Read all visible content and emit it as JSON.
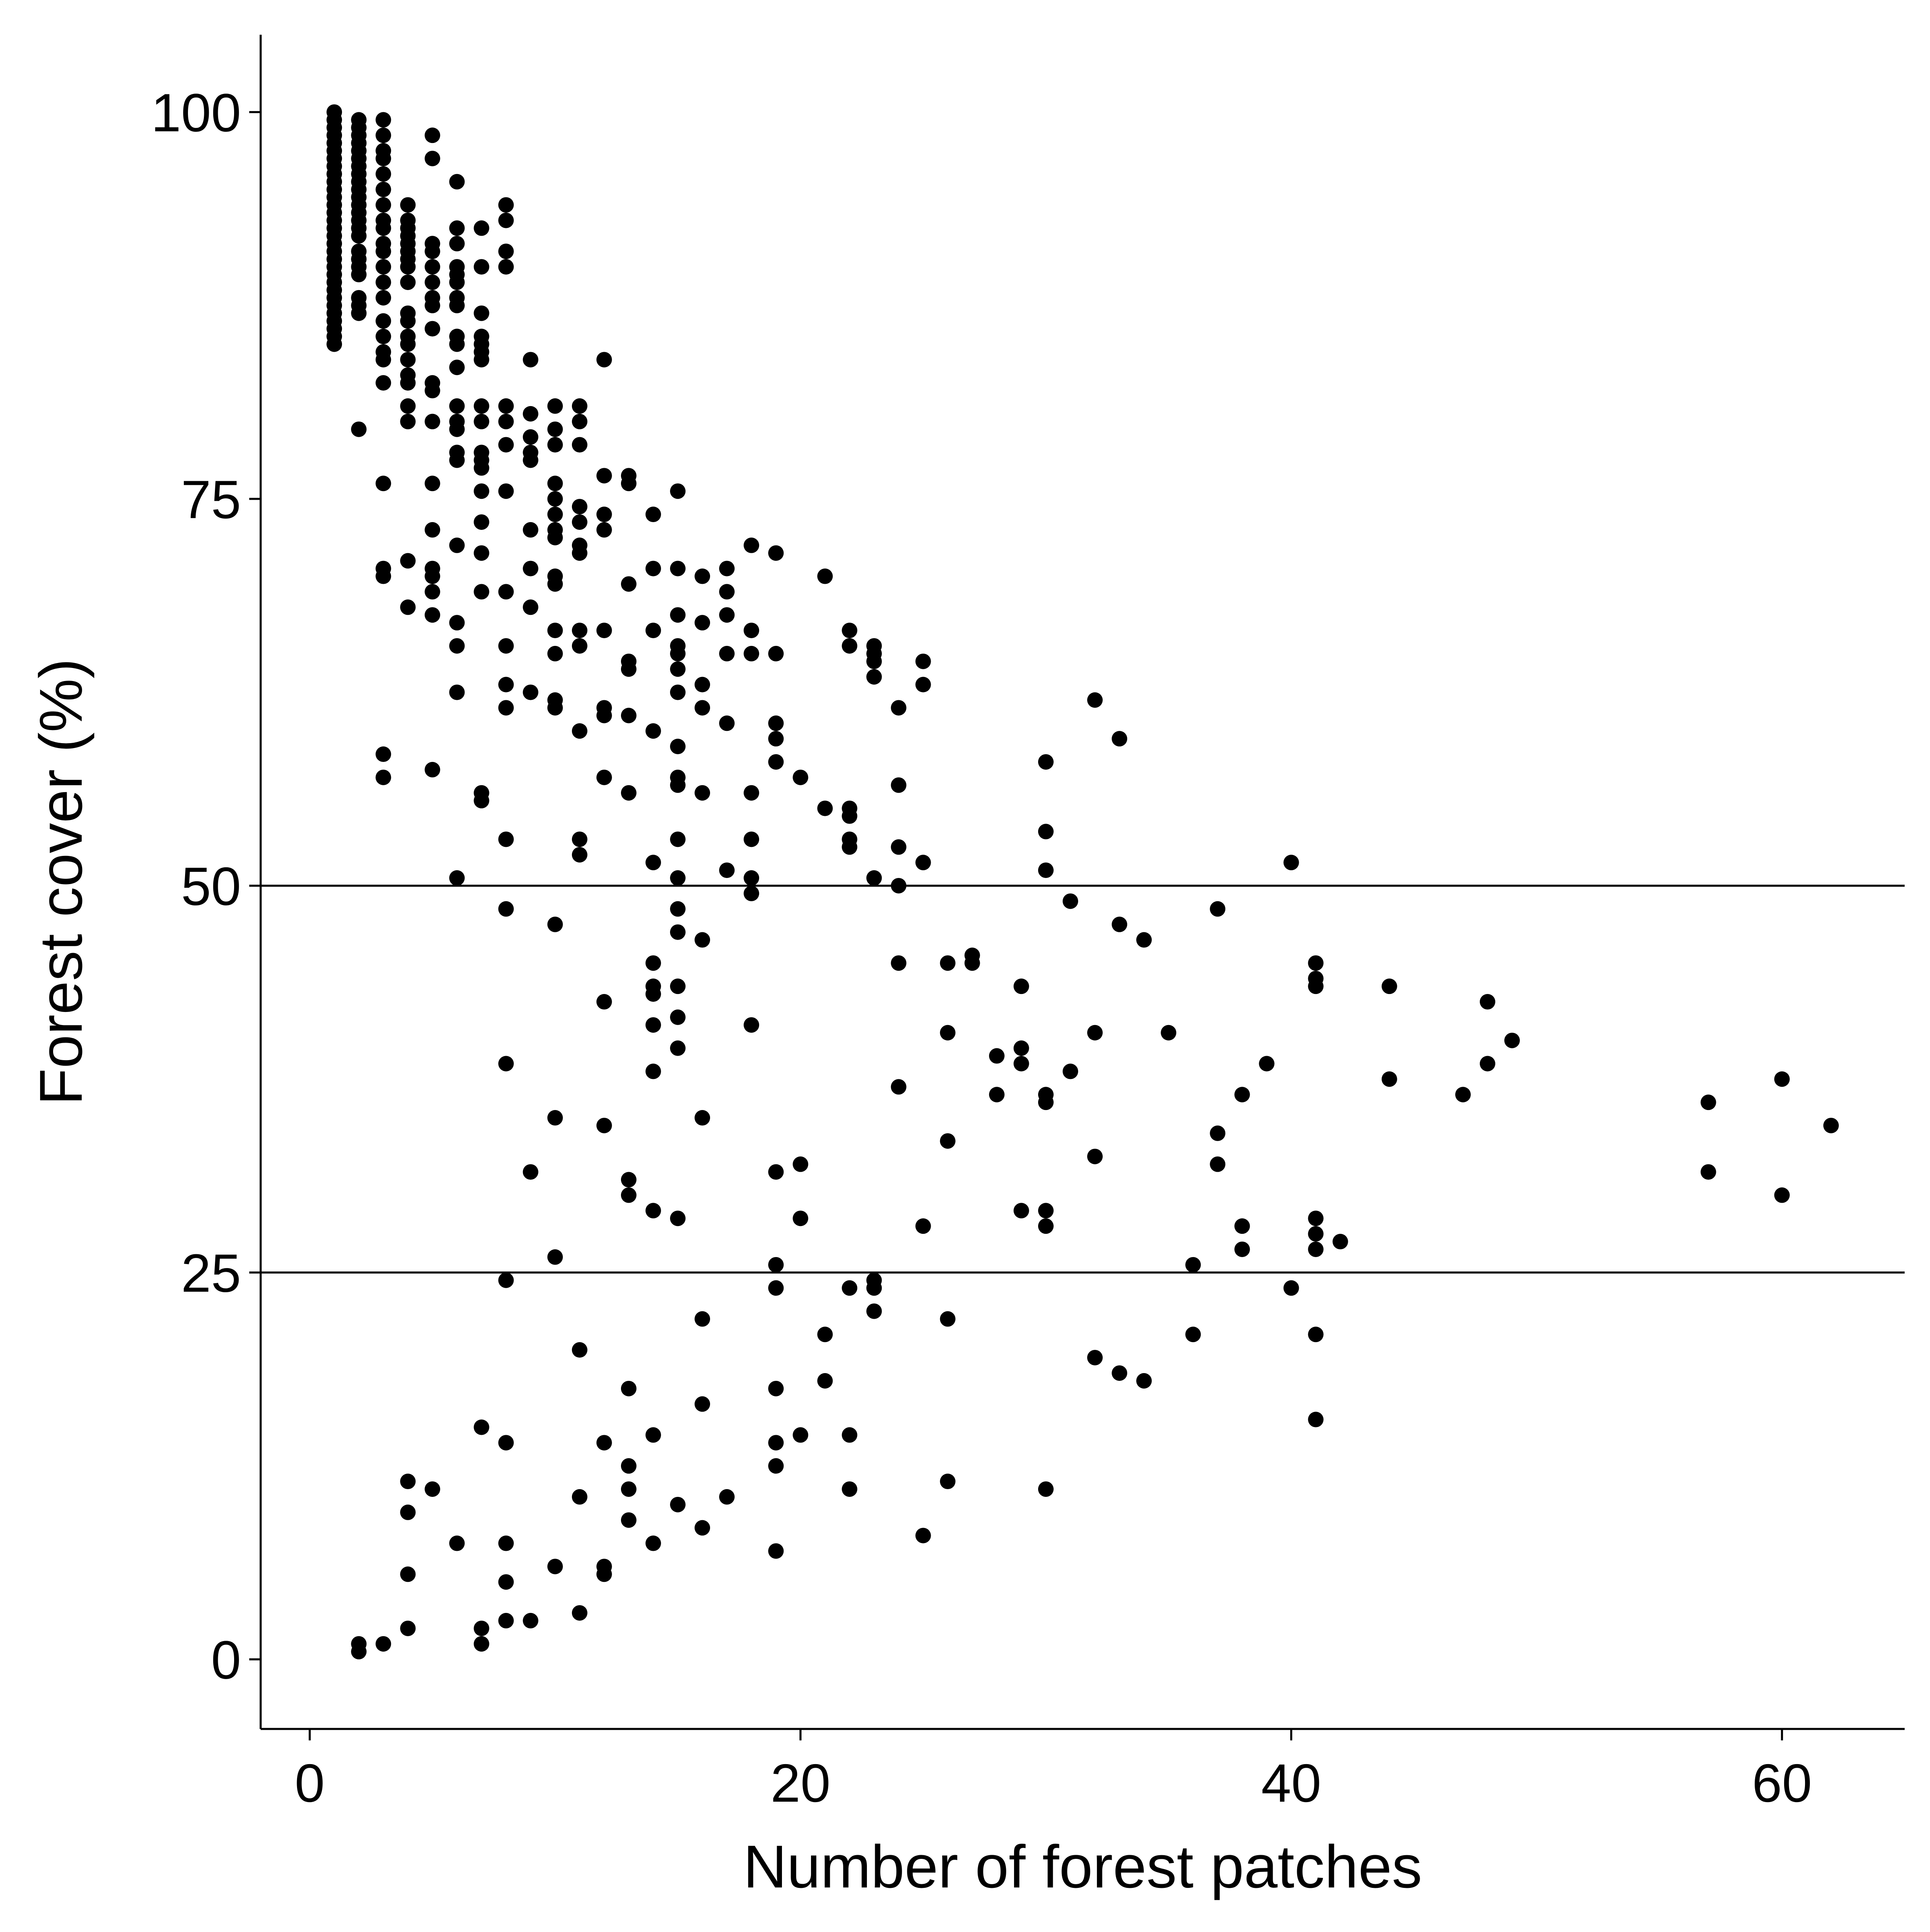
{
  "chart_data": {
    "type": "scatter",
    "title": "",
    "xlabel": "Number of forest patches",
    "ylabel": "Forest cover (%)",
    "xlim": [
      -2,
      65
    ],
    "ylim": [
      -4.5,
      105
    ],
    "x_ticks": [
      0,
      20,
      40,
      60
    ],
    "y_ticks": [
      0,
      25,
      50,
      75,
      100
    ],
    "x_tick_labels": [
      "0",
      "20",
      "40",
      "60"
    ],
    "y_tick_labels": [
      "0",
      "25",
      "50",
      "75",
      "100"
    ],
    "reference_lines_y": [
      25,
      50
    ],
    "grid": false,
    "legend": "none",
    "point_color": "#000000",
    "points": [
      [
        1,
        100
      ],
      [
        1,
        99.5
      ],
      [
        1,
        99
      ],
      [
        1,
        98.5
      ],
      [
        1,
        98
      ],
      [
        1,
        97.5
      ],
      [
        1,
        97
      ],
      [
        1,
        96.5
      ],
      [
        1,
        96
      ],
      [
        1,
        95.5
      ],
      [
        1,
        95
      ],
      [
        1,
        94.5
      ],
      [
        1,
        94
      ],
      [
        1,
        93.5
      ],
      [
        1,
        93
      ],
      [
        1,
        92.5
      ],
      [
        1,
        92
      ],
      [
        1,
        91.5
      ],
      [
        1,
        91
      ],
      [
        1,
        90.5
      ],
      [
        1,
        90
      ],
      [
        1,
        89.5
      ],
      [
        1,
        89
      ],
      [
        1,
        88.5
      ],
      [
        1,
        88
      ],
      [
        1,
        87.5
      ],
      [
        1,
        87
      ],
      [
        1,
        86.5
      ],
      [
        1,
        86
      ],
      [
        1,
        85.5
      ],
      [
        1,
        85
      ],
      [
        2,
        99.5
      ],
      [
        2,
        99
      ],
      [
        2,
        98.5
      ],
      [
        2,
        98
      ],
      [
        2,
        97.5
      ],
      [
        2,
        97
      ],
      [
        2,
        96.5
      ],
      [
        2,
        96
      ],
      [
        2,
        95.5
      ],
      [
        2,
        95
      ],
      [
        2,
        94.5
      ],
      [
        2,
        94
      ],
      [
        2,
        93.5
      ],
      [
        2,
        93
      ],
      [
        2,
        92.5
      ],
      [
        2,
        92
      ],
      [
        2,
        91
      ],
      [
        2,
        90.5
      ],
      [
        2,
        90
      ],
      [
        2,
        89.5
      ],
      [
        2,
        88
      ],
      [
        2,
        87.5
      ],
      [
        2,
        87
      ],
      [
        2,
        79.5
      ],
      [
        2,
        1
      ],
      [
        2,
        0.5
      ],
      [
        3,
        99.5
      ],
      [
        3,
        98.5
      ],
      [
        3,
        97.5
      ],
      [
        3,
        97
      ],
      [
        3,
        96
      ],
      [
        3,
        95
      ],
      [
        3,
        94
      ],
      [
        3,
        93
      ],
      [
        3,
        92.5
      ],
      [
        3,
        91.5
      ],
      [
        3,
        91
      ],
      [
        3,
        90
      ],
      [
        3,
        89
      ],
      [
        3,
        88
      ],
      [
        3,
        86.5
      ],
      [
        3,
        85.5
      ],
      [
        3,
        84.5
      ],
      [
        3,
        84
      ],
      [
        3,
        82.5
      ],
      [
        3,
        76
      ],
      [
        3,
        70.5
      ],
      [
        3,
        70
      ],
      [
        3,
        58.5
      ],
      [
        3,
        57
      ],
      [
        3,
        1
      ],
      [
        4,
        94
      ],
      [
        4,
        93
      ],
      [
        4,
        92.5
      ],
      [
        4,
        92
      ],
      [
        4,
        91.5
      ],
      [
        4,
        91
      ],
      [
        4,
        90.5
      ],
      [
        4,
        90
      ],
      [
        4,
        89
      ],
      [
        4,
        87
      ],
      [
        4,
        86.5
      ],
      [
        4,
        85.5
      ],
      [
        4,
        85
      ],
      [
        4,
        84
      ],
      [
        4,
        83
      ],
      [
        4,
        82.5
      ],
      [
        4,
        81
      ],
      [
        4,
        80
      ],
      [
        4,
        71
      ],
      [
        4,
        68
      ],
      [
        4,
        11.5
      ],
      [
        4,
        9.5
      ],
      [
        4,
        5.5
      ],
      [
        4,
        2
      ],
      [
        5,
        98.5
      ],
      [
        5,
        97
      ],
      [
        5,
        91.5
      ],
      [
        5,
        91
      ],
      [
        5,
        90
      ],
      [
        5,
        89
      ],
      [
        5,
        88
      ],
      [
        5,
        87.5
      ],
      [
        5,
        86
      ],
      [
        5,
        82.5
      ],
      [
        5,
        82
      ],
      [
        5,
        80
      ],
      [
        5,
        76
      ],
      [
        5,
        73
      ],
      [
        5,
        70.5
      ],
      [
        5,
        70
      ],
      [
        5,
        69
      ],
      [
        5,
        67.5
      ],
      [
        5,
        57.5
      ],
      [
        5,
        11
      ],
      [
        6,
        95.5
      ],
      [
        6,
        92.5
      ],
      [
        6,
        91.5
      ],
      [
        6,
        90
      ],
      [
        6,
        89.5
      ],
      [
        6,
        89
      ],
      [
        6,
        88
      ],
      [
        6,
        87.5
      ],
      [
        6,
        85.5
      ],
      [
        6,
        85
      ],
      [
        6,
        83.5
      ],
      [
        6,
        81
      ],
      [
        6,
        80
      ],
      [
        6,
        79.5
      ],
      [
        6,
        78
      ],
      [
        6,
        77.5
      ],
      [
        6,
        72
      ],
      [
        6,
        67
      ],
      [
        6,
        65.5
      ],
      [
        6,
        62.5
      ],
      [
        6,
        50.5
      ],
      [
        6,
        7.5
      ],
      [
        7,
        92.5
      ],
      [
        7,
        90
      ],
      [
        7,
        87
      ],
      [
        7,
        85.5
      ],
      [
        7,
        85
      ],
      [
        7,
        84.5
      ],
      [
        7,
        84
      ],
      [
        7,
        81
      ],
      [
        7,
        80
      ],
      [
        7,
        78
      ],
      [
        7,
        77.5
      ],
      [
        7,
        77
      ],
      [
        7,
        75.5
      ],
      [
        7,
        73.5
      ],
      [
        7,
        71.5
      ],
      [
        7,
        69
      ],
      [
        7,
        56
      ],
      [
        7,
        55.5
      ],
      [
        7,
        15
      ],
      [
        7,
        2
      ],
      [
        7,
        1
      ],
      [
        8,
        94
      ],
      [
        8,
        93
      ],
      [
        8,
        91
      ],
      [
        8,
        90
      ],
      [
        8,
        81
      ],
      [
        8,
        80
      ],
      [
        8,
        78.5
      ],
      [
        8,
        75.5
      ],
      [
        8,
        69
      ],
      [
        8,
        65.5
      ],
      [
        8,
        63
      ],
      [
        8,
        61.5
      ],
      [
        8,
        53
      ],
      [
        8,
        48.5
      ],
      [
        8,
        38.5
      ],
      [
        8,
        24.5
      ],
      [
        8,
        14
      ],
      [
        8,
        7.5
      ],
      [
        8,
        5
      ],
      [
        8,
        2.5
      ],
      [
        9,
        84
      ],
      [
        9,
        80.5
      ],
      [
        9,
        79
      ],
      [
        9,
        78
      ],
      [
        9,
        77.5
      ],
      [
        9,
        73
      ],
      [
        9,
        70.5
      ],
      [
        9,
        68
      ],
      [
        9,
        62.5
      ],
      [
        9,
        31.5
      ],
      [
        9,
        2.5
      ],
      [
        10,
        81
      ],
      [
        10,
        79.5
      ],
      [
        10,
        78.5
      ],
      [
        10,
        76
      ],
      [
        10,
        75
      ],
      [
        10,
        74
      ],
      [
        10,
        73
      ],
      [
        10,
        72.5
      ],
      [
        10,
        70
      ],
      [
        10,
        69.5
      ],
      [
        10,
        66.5
      ],
      [
        10,
        65
      ],
      [
        10,
        62
      ],
      [
        10,
        61.5
      ],
      [
        10,
        47.5
      ],
      [
        10,
        35
      ],
      [
        10,
        26
      ],
      [
        10,
        6
      ],
      [
        11,
        81
      ],
      [
        11,
        80
      ],
      [
        11,
        78.5
      ],
      [
        11,
        74.5
      ],
      [
        11,
        73.5
      ],
      [
        11,
        72
      ],
      [
        11,
        71.5
      ],
      [
        11,
        66.5
      ],
      [
        11,
        65.5
      ],
      [
        11,
        60
      ],
      [
        11,
        53
      ],
      [
        11,
        52
      ],
      [
        11,
        20
      ],
      [
        11,
        10.5
      ],
      [
        11,
        3
      ],
      [
        12,
        84
      ],
      [
        12,
        76.5
      ],
      [
        12,
        74
      ],
      [
        12,
        73
      ],
      [
        12,
        66.5
      ],
      [
        12,
        61.5
      ],
      [
        12,
        61
      ],
      [
        12,
        57
      ],
      [
        12,
        42.5
      ],
      [
        12,
        34.5
      ],
      [
        12,
        14
      ],
      [
        12,
        6
      ],
      [
        12,
        5.5
      ],
      [
        13,
        76.5
      ],
      [
        13,
        76
      ],
      [
        13,
        69.5
      ],
      [
        13,
        64.5
      ],
      [
        13,
        64
      ],
      [
        13,
        61
      ],
      [
        13,
        56
      ],
      [
        13,
        31
      ],
      [
        13,
        30
      ],
      [
        13,
        17.5
      ],
      [
        13,
        12.5
      ],
      [
        13,
        11
      ],
      [
        13,
        9
      ],
      [
        14,
        74
      ],
      [
        14,
        70.5
      ],
      [
        14,
        66.5
      ],
      [
        14,
        60
      ],
      [
        14,
        51.5
      ],
      [
        14,
        45
      ],
      [
        14,
        43.5
      ],
      [
        14,
        43
      ],
      [
        14,
        41
      ],
      [
        14,
        38
      ],
      [
        14,
        29
      ],
      [
        14,
        14.5
      ],
      [
        14,
        7.5
      ],
      [
        15,
        75.5
      ],
      [
        15,
        70.5
      ],
      [
        15,
        67.5
      ],
      [
        15,
        65.5
      ],
      [
        15,
        65
      ],
      [
        15,
        64
      ],
      [
        15,
        62.5
      ],
      [
        15,
        59
      ],
      [
        15,
        57
      ],
      [
        15,
        56.5
      ],
      [
        15,
        53
      ],
      [
        15,
        50.5
      ],
      [
        15,
        48.5
      ],
      [
        15,
        47
      ],
      [
        15,
        43.5
      ],
      [
        15,
        41.5
      ],
      [
        15,
        39.5
      ],
      [
        15,
        28.5
      ],
      [
        15,
        10
      ],
      [
        16,
        70
      ],
      [
        16,
        67
      ],
      [
        16,
        63
      ],
      [
        16,
        61.5
      ],
      [
        16,
        56
      ],
      [
        16,
        46.5
      ],
      [
        16,
        35
      ],
      [
        16,
        22
      ],
      [
        16,
        16.5
      ],
      [
        16,
        8.5
      ],
      [
        17,
        70.5
      ],
      [
        17,
        69
      ],
      [
        17,
        67.5
      ],
      [
        17,
        65
      ],
      [
        17,
        60.5
      ],
      [
        17,
        51
      ],
      [
        17,
        10.5
      ],
      [
        18,
        72
      ],
      [
        18,
        66.5
      ],
      [
        18,
        65
      ],
      [
        18,
        56
      ],
      [
        18,
        53
      ],
      [
        18,
        50.5
      ],
      [
        18,
        49.5
      ],
      [
        18,
        41
      ],
      [
        19,
        71.5
      ],
      [
        19,
        65
      ],
      [
        19,
        60.5
      ],
      [
        19,
        59.5
      ],
      [
        19,
        58
      ],
      [
        19,
        31.5
      ],
      [
        19,
        25.5
      ],
      [
        19,
        24
      ],
      [
        19,
        17.5
      ],
      [
        19,
        14
      ],
      [
        19,
        12.5
      ],
      [
        19,
        7
      ],
      [
        20,
        57
      ],
      [
        20,
        32
      ],
      [
        20,
        28.5
      ],
      [
        20,
        14.5
      ],
      [
        21,
        70
      ],
      [
        21,
        55
      ],
      [
        21,
        21
      ],
      [
        21,
        18
      ],
      [
        22,
        66.5
      ],
      [
        22,
        65.5
      ],
      [
        22,
        55
      ],
      [
        22,
        54.5
      ],
      [
        22,
        53
      ],
      [
        22,
        52.5
      ],
      [
        22,
        24
      ],
      [
        22,
        14.5
      ],
      [
        22,
        11
      ],
      [
        23,
        65.5
      ],
      [
        23,
        65
      ],
      [
        23,
        64.5
      ],
      [
        23,
        63.5
      ],
      [
        23,
        50.5
      ],
      [
        23,
        24.5
      ],
      [
        23,
        24
      ],
      [
        23,
        22.5
      ],
      [
        24,
        61.5
      ],
      [
        24,
        56.5
      ],
      [
        24,
        52.5
      ],
      [
        24,
        50
      ],
      [
        24,
        45
      ],
      [
        24,
        37
      ],
      [
        25,
        64.5
      ],
      [
        25,
        63
      ],
      [
        25,
        51.5
      ],
      [
        25,
        28
      ],
      [
        25,
        8
      ],
      [
        26,
        45
      ],
      [
        26,
        40.5
      ],
      [
        26,
        33.5
      ],
      [
        26,
        22
      ],
      [
        26,
        11.5
      ],
      [
        27,
        45.5
      ],
      [
        27,
        45
      ],
      [
        28,
        39
      ],
      [
        28,
        36.5
      ],
      [
        29,
        43.5
      ],
      [
        29,
        39.5
      ],
      [
        29,
        38.5
      ],
      [
        29,
        29
      ],
      [
        30,
        58
      ],
      [
        30,
        53.5
      ],
      [
        30,
        51
      ],
      [
        30,
        36.5
      ],
      [
        30,
        36
      ],
      [
        30,
        29
      ],
      [
        30,
        28
      ],
      [
        30,
        11
      ],
      [
        31,
        49
      ],
      [
        31,
        38
      ],
      [
        32,
        62
      ],
      [
        32,
        40.5
      ],
      [
        32,
        32.5
      ],
      [
        32,
        19.5
      ],
      [
        33,
        59.5
      ],
      [
        33,
        47.5
      ],
      [
        33,
        18.5
      ],
      [
        34,
        46.5
      ],
      [
        34,
        18
      ],
      [
        35,
        40.5
      ],
      [
        36,
        25.5
      ],
      [
        36,
        21
      ],
      [
        37,
        48.5
      ],
      [
        37,
        34
      ],
      [
        37,
        32
      ],
      [
        38,
        36.5
      ],
      [
        38,
        28
      ],
      [
        38,
        26.5
      ],
      [
        39,
        38.5
      ],
      [
        40,
        51.5
      ],
      [
        40,
        24
      ],
      [
        41,
        45
      ],
      [
        41,
        44
      ],
      [
        41,
        43.5
      ],
      [
        41,
        28.5
      ],
      [
        41,
        27.5
      ],
      [
        41,
        26.5
      ],
      [
        41,
        21
      ],
      [
        41,
        15.5
      ],
      [
        42,
        27
      ],
      [
        44,
        43.5
      ],
      [
        44,
        37.5
      ],
      [
        47,
        36.5
      ],
      [
        48,
        42.5
      ],
      [
        48,
        38.5
      ],
      [
        49,
        40
      ],
      [
        57,
        36
      ],
      [
        57,
        31.5
      ],
      [
        60,
        37.5
      ],
      [
        60,
        30
      ],
      [
        62,
        34.5
      ]
    ]
  }
}
